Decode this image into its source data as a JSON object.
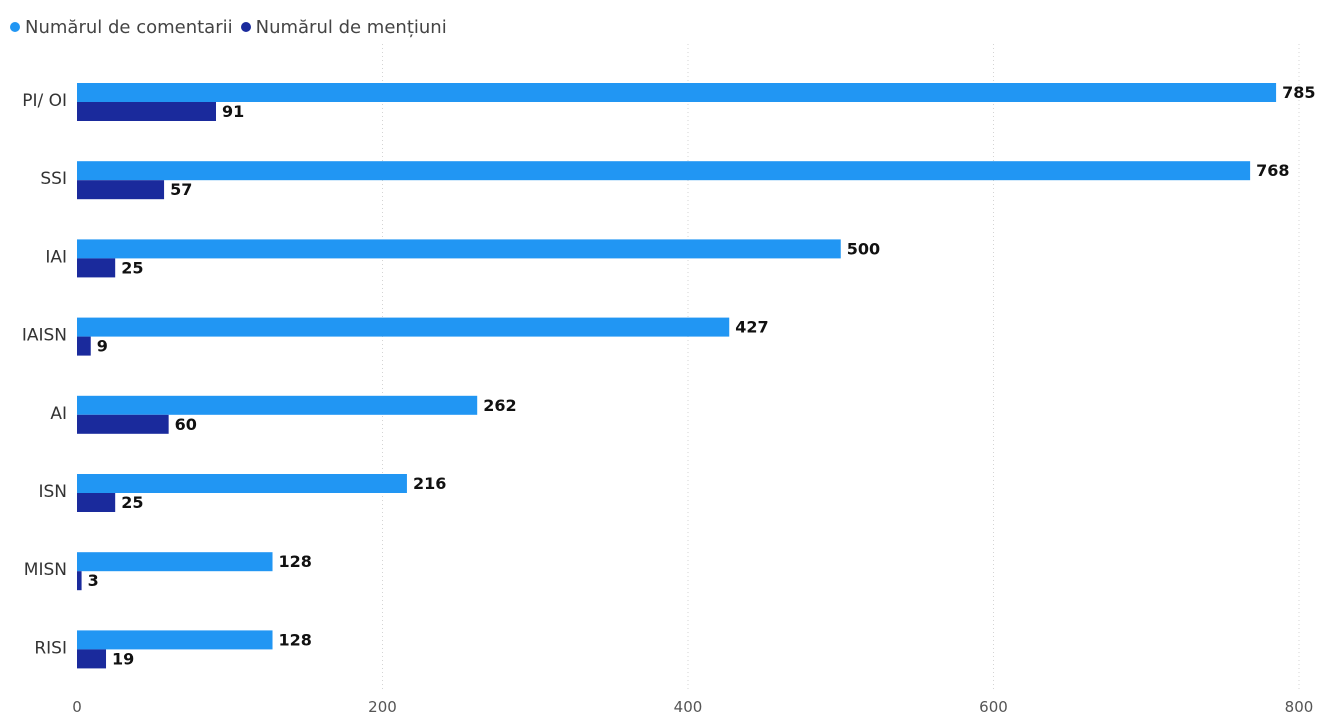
{
  "chart_data": {
    "type": "bar",
    "orientation": "horizontal",
    "categories": [
      "PI/ OI",
      "SSI",
      "IAI",
      "IAISN",
      "AI",
      "ISN",
      "MISN",
      "RISI"
    ],
    "series": [
      {
        "name": "Numărul de comentarii",
        "color": "#2196F3",
        "values": [
          785,
          768,
          500,
          427,
          262,
          216,
          128,
          128
        ]
      },
      {
        "name": "Numărul de mențiuni",
        "color": "#1A2A9C",
        "values": [
          91,
          57,
          25,
          9,
          60,
          25,
          3,
          19
        ]
      }
    ],
    "xlim": [
      0,
      800
    ],
    "xticks": [
      0,
      200,
      400,
      600,
      800
    ],
    "grid": "vertical dotted",
    "legend_position": "top-left",
    "title": "",
    "xlabel": "",
    "ylabel": ""
  }
}
